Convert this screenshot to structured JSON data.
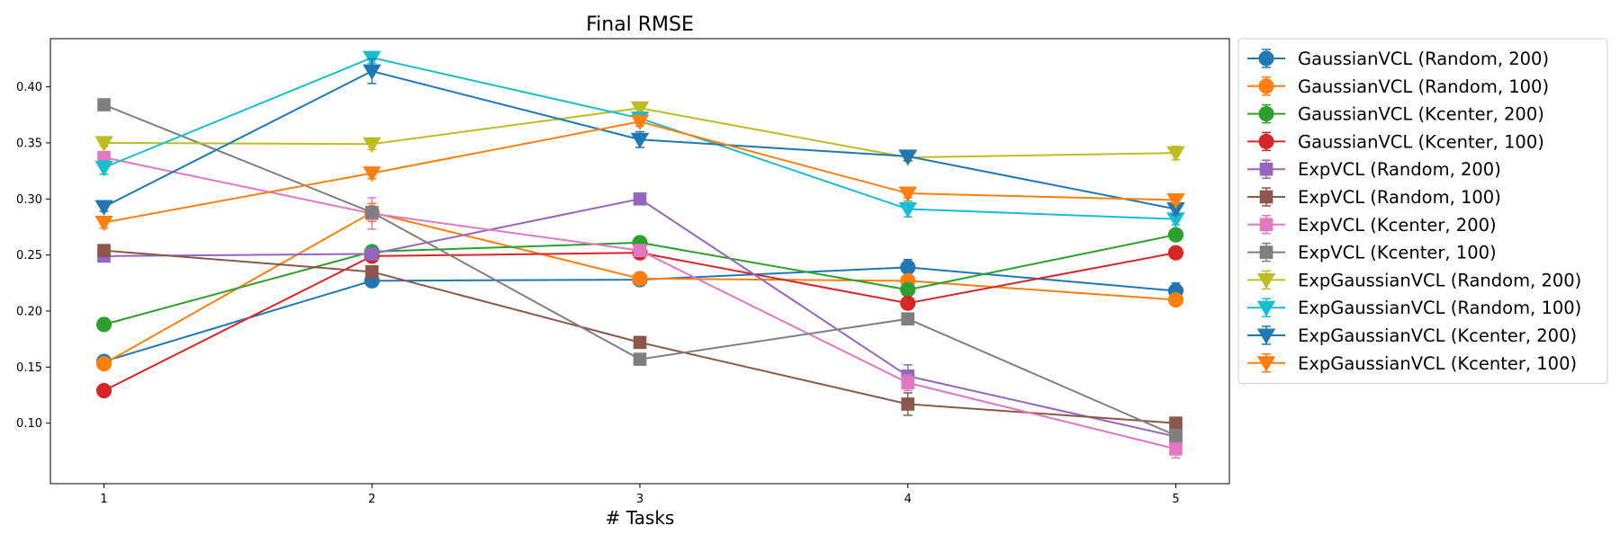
{
  "chart_data": {
    "type": "line",
    "title": "Final RMSE",
    "xlabel": "# Tasks",
    "ylabel": "",
    "x": [
      1,
      2,
      3,
      4,
      5
    ],
    "xlim": [
      0.8,
      5.2
    ],
    "ylim": [
      0.046,
      0.443
    ],
    "yticks": [
      0.1,
      0.15,
      0.2,
      0.25,
      0.3,
      0.35,
      0.4
    ],
    "xticks": [
      1,
      2,
      3,
      4,
      5
    ],
    "grid": false,
    "legend_position": "outside right",
    "series": [
      {
        "name": "GaussianVCL (Random, 200)",
        "color": "#1f77b4",
        "marker": "circle",
        "values": [
          0.155,
          0.227,
          0.228,
          0.239,
          0.218
        ],
        "errors": [
          0.003,
          0.005,
          0.003,
          0.007,
          0.007
        ]
      },
      {
        "name": "GaussianVCL (Random, 100)",
        "color": "#ff7f0e",
        "marker": "circle",
        "values": [
          0.153,
          0.288,
          0.229,
          0.227,
          0.21
        ],
        "errors": [
          0.003,
          0.008,
          0.003,
          0.005,
          0.003
        ]
      },
      {
        "name": "GaussianVCL (Kcenter, 200)",
        "color": "#2ca02c",
        "marker": "circle",
        "values": [
          0.188,
          0.253,
          0.261,
          0.219,
          0.268
        ],
        "errors": [
          0.004,
          0.004,
          0.003,
          0.004,
          0.004
        ]
      },
      {
        "name": "GaussianVCL (Kcenter, 100)",
        "color": "#d62728",
        "marker": "circle",
        "values": [
          0.129,
          0.249,
          0.252,
          0.207,
          0.252
        ],
        "errors": [
          0.002,
          0.003,
          0.003,
          0.003,
          0.003
        ]
      },
      {
        "name": "ExpVCL (Random, 200)",
        "color": "#9467bd",
        "marker": "square",
        "values": [
          0.249,
          0.251,
          0.3,
          0.142,
          0.088
        ],
        "errors": [
          0.003,
          0.003,
          0.004,
          0.01,
          0.004
        ]
      },
      {
        "name": "ExpVCL (Random, 100)",
        "color": "#8c564b",
        "marker": "square",
        "values": [
          0.254,
          0.235,
          0.172,
          0.117,
          0.1
        ],
        "errors": [
          0.003,
          0.004,
          0.004,
          0.01,
          0.004
        ]
      },
      {
        "name": "ExpVCL (Kcenter, 200)",
        "color": "#e377c2",
        "marker": "square",
        "values": [
          0.337,
          0.287,
          0.254,
          0.136,
          0.077
        ],
        "errors": [
          0.005,
          0.014,
          0.003,
          0.007,
          0.008
        ]
      },
      {
        "name": "ExpVCL (Kcenter, 100)",
        "color": "#7f7f7f",
        "marker": "square",
        "values": [
          0.384,
          0.288,
          0.157,
          0.193,
          0.089
        ],
        "errors": [
          0.003,
          0.003,
          0.005,
          0.004,
          0.004
        ]
      },
      {
        "name": "ExpGaussianVCL (Random, 200)",
        "color": "#bcbd22",
        "marker": "triangle-down",
        "values": [
          0.35,
          0.349,
          0.381,
          0.337,
          0.341
        ],
        "errors": [
          0.003,
          0.005,
          0.004,
          0.003,
          0.006
        ]
      },
      {
        "name": "ExpGaussianVCL (Random, 100)",
        "color": "#17becf",
        "marker": "triangle-down",
        "values": [
          0.328,
          0.426,
          0.372,
          0.291,
          0.282
        ],
        "errors": [
          0.006,
          0.005,
          0.005,
          0.007,
          0.005
        ]
      },
      {
        "name": "ExpGaussianVCL (Kcenter, 200)",
        "color": "#1f77b4",
        "marker": "triangle-down",
        "values": [
          0.293,
          0.414,
          0.353,
          0.338,
          0.291
        ],
        "errors": [
          0.004,
          0.011,
          0.007,
          0.004,
          0.005
        ]
      },
      {
        "name": "ExpGaussianVCL (Kcenter, 100)",
        "color": "#ff7f0e",
        "marker": "triangle-down",
        "values": [
          0.279,
          0.323,
          0.369,
          0.305,
          0.299
        ],
        "errors": [
          0.005,
          0.005,
          0.004,
          0.004,
          0.003
        ]
      }
    ]
  }
}
